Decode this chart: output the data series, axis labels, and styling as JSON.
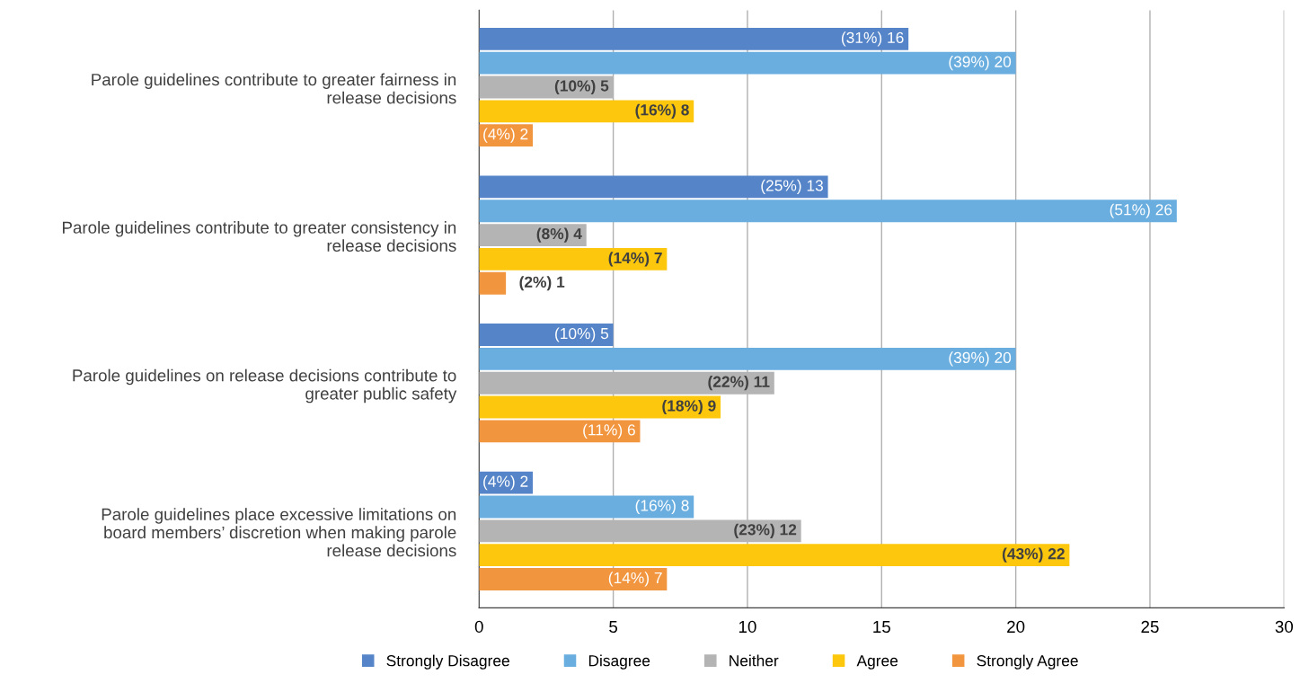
{
  "chart_data": {
    "type": "bar",
    "orientation": "horizontal",
    "categories": [
      "Parole guidelines contribute to greater fairness in\nrelease decisions",
      "Parole guidelines contribute to greater consistency in\nrelease decisions",
      "Parole guidelines on release decisions contribute to\ngreater public safety",
      "Parole guidelines place excessive limitations on\nboard members’ discretion when making parole\nrelease decisions"
    ],
    "series": [
      {
        "name": "Strongly Disagree",
        "color": "#5585c8",
        "values": [
          16,
          13,
          5,
          2
        ],
        "value_labels": [
          "(31%) 16",
          "(25%) 13",
          "(10%) 5",
          "(4%) 2"
        ]
      },
      {
        "name": "Disagree",
        "color": "#6aaee0",
        "values": [
          20,
          26,
          20,
          8
        ],
        "value_labels": [
          "(39%) 20",
          "(51%) 26",
          "(39%) 20",
          "(16%) 8"
        ]
      },
      {
        "name": "Neither",
        "color": "#b4b4b4",
        "values": [
          5,
          4,
          11,
          12
        ],
        "value_labels": [
          "(10%) 5",
          "(8%) 4",
          "(22%) 11",
          "(23%) 12"
        ]
      },
      {
        "name": "Agree",
        "color": "#fcc70c",
        "values": [
          8,
          7,
          9,
          22
        ],
        "value_labels": [
          "(16%) 8",
          "(14%) 7",
          "(18%) 9",
          "(43%) 22"
        ]
      },
      {
        "name": "Strongly Agree",
        "color": "#f2953f",
        "values": [
          2,
          1,
          6,
          7
        ],
        "value_labels": [
          "(4%) 2",
          "(2%) 1",
          "(11%) 6",
          "(14%) 7"
        ]
      }
    ],
    "xlim": [
      0,
      30
    ],
    "xticks": [
      0,
      5,
      10,
      15,
      20,
      25,
      30
    ],
    "grid": "x",
    "legend": "bottom"
  }
}
